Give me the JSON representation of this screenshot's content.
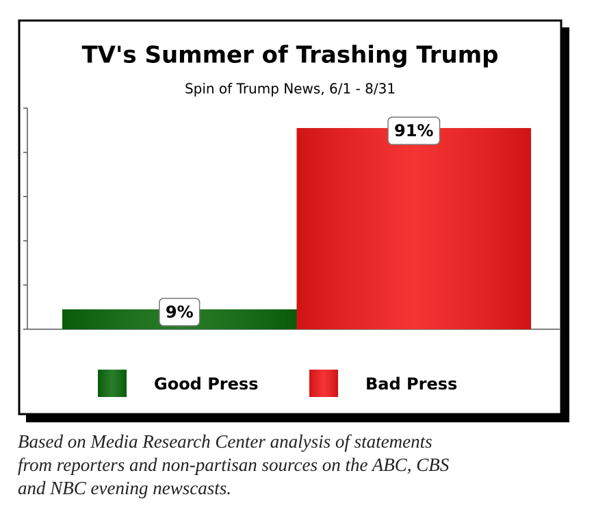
{
  "chart_data": {
    "type": "bar",
    "title": "TV's Summer of Trashing Trump",
    "subtitle": "Spin of Trump News, 6/1 - 8/31",
    "categories": [
      null
    ],
    "series": [
      {
        "name": "Good Press",
        "color": "#0b6b0b",
        "values": [
          9
        ],
        "value_labels": [
          "9%"
        ]
      },
      {
        "name": "Bad Press",
        "color": "#f41818",
        "values": [
          91
        ],
        "value_labels": [
          "91%"
        ]
      }
    ],
    "ylim": [
      0,
      100
    ],
    "yticks": [
      0,
      20,
      40,
      60,
      80,
      100
    ],
    "grid": false,
    "legend": "bottom"
  },
  "caption": [
    "Based on Media Research Center analysis of statements",
    "from reporters and non-partisan sources on the ABC, CBS",
    "and NBC evening newscasts."
  ]
}
